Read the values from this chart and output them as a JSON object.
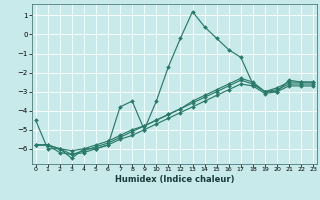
{
  "xlabel": "Humidex (Indice chaleur)",
  "bg_color": "#c8eaea",
  "grid_color": "#ffffff",
  "line_color": "#2a7a6a",
  "xlim": [
    -0.3,
    23.3
  ],
  "ylim": [
    -6.8,
    1.6
  ],
  "yticks": [
    1,
    0,
    -1,
    -2,
    -3,
    -4,
    -5,
    -6
  ],
  "xticks": [
    0,
    1,
    2,
    3,
    4,
    5,
    6,
    7,
    8,
    9,
    10,
    11,
    12,
    13,
    14,
    15,
    16,
    17,
    18,
    19,
    20,
    21,
    22,
    23
  ],
  "series1_x": [
    0,
    1,
    2,
    3,
    4,
    5,
    6,
    7,
    8,
    9,
    10,
    11,
    12,
    13,
    14,
    15,
    16,
    17,
    18,
    19,
    20,
    21,
    22,
    23
  ],
  "series1_y": [
    -4.5,
    -6.0,
    -6.0,
    -6.5,
    -6.0,
    -6.0,
    -5.8,
    -3.8,
    -3.5,
    -5.0,
    -3.5,
    -1.7,
    -0.2,
    1.2,
    0.4,
    -0.2,
    -0.8,
    -1.2,
    -2.6,
    -3.0,
    -3.0,
    -2.4,
    -2.5,
    -2.5
  ],
  "series2_x": [
    0,
    1,
    2,
    3,
    4,
    5,
    6,
    7,
    8,
    9,
    10,
    11,
    12,
    13,
    14,
    15,
    16,
    17,
    18,
    19,
    20,
    21,
    22,
    23
  ],
  "series2_y": [
    -5.8,
    -5.8,
    -6.0,
    -6.1,
    -6.0,
    -5.8,
    -5.6,
    -5.3,
    -5.0,
    -4.8,
    -4.5,
    -4.2,
    -3.9,
    -3.5,
    -3.2,
    -2.9,
    -2.6,
    -2.3,
    -2.5,
    -3.0,
    -2.8,
    -2.5,
    -2.5,
    -2.5
  ],
  "series3_x": [
    0,
    1,
    2,
    3,
    4,
    5,
    6,
    7,
    8,
    9,
    10,
    11,
    12,
    13,
    14,
    15,
    16,
    17,
    18,
    19,
    20,
    21,
    22,
    23
  ],
  "series3_y": [
    -5.8,
    -5.8,
    -6.0,
    -6.3,
    -6.1,
    -5.9,
    -5.7,
    -5.4,
    -5.1,
    -4.8,
    -4.5,
    -4.2,
    -3.9,
    -3.6,
    -3.3,
    -3.0,
    -2.7,
    -2.4,
    -2.6,
    -3.0,
    -2.9,
    -2.6,
    -2.6,
    -2.6
  ],
  "series4_x": [
    0,
    1,
    2,
    3,
    4,
    5,
    6,
    7,
    8,
    9,
    10,
    11,
    12,
    13,
    14,
    15,
    16,
    17,
    18,
    19,
    20,
    21,
    22,
    23
  ],
  "series4_y": [
    -5.8,
    -5.8,
    -6.2,
    -6.3,
    -6.2,
    -6.0,
    -5.8,
    -5.5,
    -5.3,
    -5.0,
    -4.7,
    -4.4,
    -4.1,
    -3.8,
    -3.5,
    -3.2,
    -2.9,
    -2.6,
    -2.7,
    -3.1,
    -3.0,
    -2.7,
    -2.7,
    -2.7
  ]
}
